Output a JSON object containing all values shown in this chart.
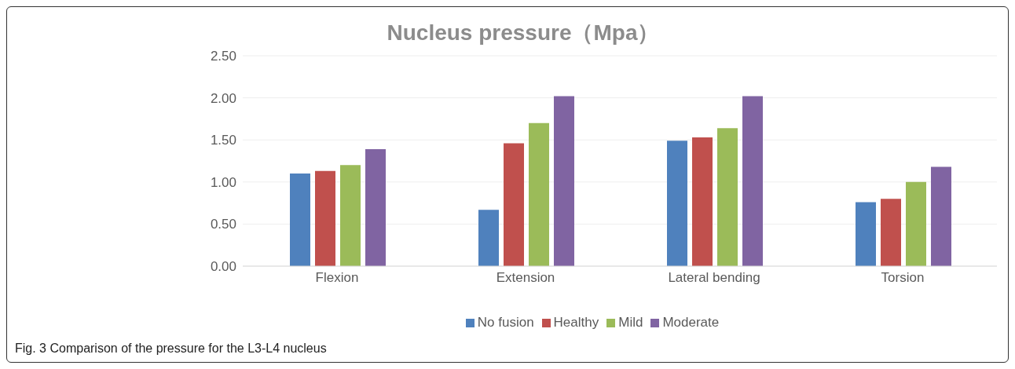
{
  "chart_data": {
    "type": "bar",
    "title": "Nucleus pressure（Mpa）",
    "categories": [
      "Flexion",
      "Extension",
      "Lateral bending",
      "Torsion"
    ],
    "series": [
      {
        "name": "No fusion",
        "color": "#4f81bd",
        "values": [
          1.1,
          0.67,
          1.49,
          0.76
        ]
      },
      {
        "name": "Healthy",
        "color": "#c0504d",
        "values": [
          1.13,
          1.46,
          1.53,
          0.8
        ]
      },
      {
        "name": "Mild",
        "color": "#9bbb59",
        "values": [
          1.2,
          1.7,
          1.64,
          1.0
        ]
      },
      {
        "name": "Moderate",
        "color": "#8064a2",
        "values": [
          1.39,
          2.02,
          2.02,
          1.18
        ]
      }
    ],
    "ylim": [
      0,
      2.5
    ],
    "yticks": [
      {
        "value": 0,
        "label": "0.00"
      },
      {
        "value": 0.5,
        "label": "0.50"
      },
      {
        "value": 1,
        "label": "1.00"
      },
      {
        "value": 1.5,
        "label": "1.50"
      },
      {
        "value": 2,
        "label": "2.00"
      },
      {
        "value": 2.5,
        "label": "2.50"
      }
    ],
    "grid": "y",
    "legend": "bottom",
    "annotations": [
      "Fig. 3 Comparison of the pressure for the L3-L4 nucleus"
    ]
  }
}
